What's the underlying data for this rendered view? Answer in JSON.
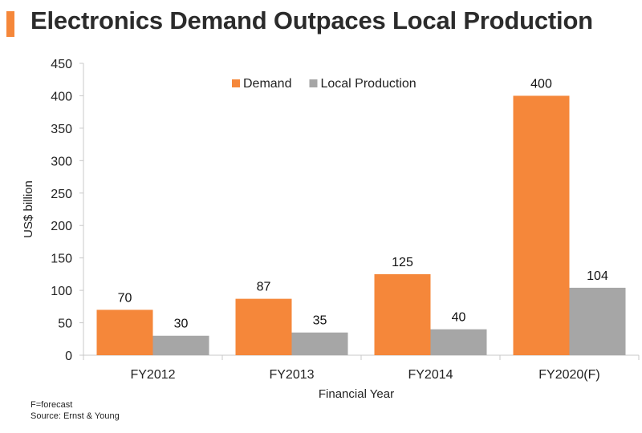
{
  "title": "Electronics Demand Outpaces Local Production",
  "colors": {
    "accent": "#f5873a",
    "demand": "#f5873a",
    "local_production": "#a6a6a6",
    "axis": "#c8c8c8"
  },
  "chart_data": {
    "type": "bar",
    "categories": [
      "FY2012",
      "FY2013",
      "FY2014",
      "FY2020(F)"
    ],
    "series": [
      {
        "name": "Demand",
        "values": [
          70,
          87,
          125,
          400
        ]
      },
      {
        "name": "Local Production",
        "values": [
          30,
          35,
          40,
          104
        ]
      }
    ],
    "xlabel": "Financial Year",
    "ylabel": "US$ billion",
    "ylim": [
      0,
      450
    ],
    "yticks": [
      0,
      50,
      100,
      150,
      200,
      250,
      300,
      350,
      400,
      450
    ],
    "legend_position": "top-center",
    "data_labels": true,
    "grid": false
  },
  "footnotes": {
    "note": "F=forecast",
    "source": "Source: Ernst & Young"
  }
}
